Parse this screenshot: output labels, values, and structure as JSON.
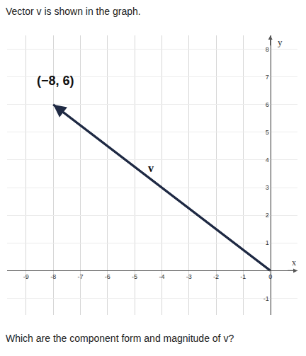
{
  "chart_data": {
    "type": "vector",
    "title": "Vector v is shown in the graph.",
    "question": "Which are the component form and magnitude of v?",
    "x": [
      0,
      -8
    ],
    "y": [
      0,
      6
    ],
    "color": "#1f2a44",
    "x_label": "x",
    "y_label": "y",
    "annotations": [
      {
        "text": "(−8, 6)",
        "x": -7.9,
        "y": 6.55
      },
      {
        "text": "v",
        "x": -4.4,
        "y": 3.45
      }
    ],
    "xlim": [
      -9.7,
      1.0
    ],
    "ylim": [
      -1.6,
      8.5
    ],
    "xticks": [
      -9,
      -8,
      -7,
      -6,
      -5,
      -4,
      -3,
      -2,
      -1,
      0
    ],
    "yticks": [
      -1,
      1,
      2,
      3,
      4,
      5,
      6,
      7,
      8
    ],
    "grid": true
  }
}
